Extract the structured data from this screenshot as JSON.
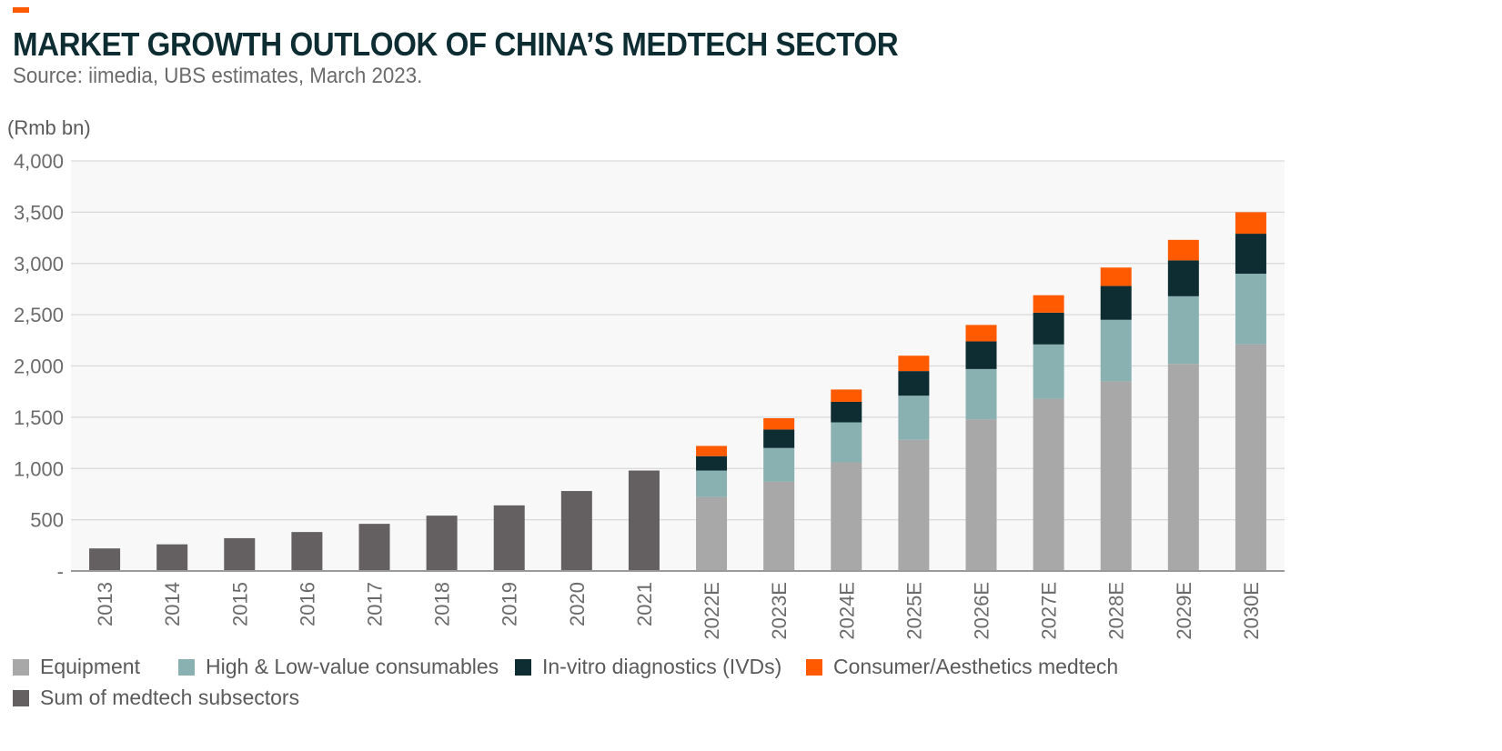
{
  "header": {
    "title": "MARKET GROWTH OUTLOOK OF CHINA’S MEDTECH SECTOR",
    "source": "Source: iimedia, UBS estimates, March 2023."
  },
  "colors": {
    "accent": "#ff5a00",
    "equipment": "#a9a8a8",
    "consumables": "#8ab1b1",
    "ivd": "#0d2d33",
    "aesthetics": "#ff5a00",
    "sum": "#646061",
    "plot_bg": "#f7f8f7",
    "grid": "#d9d9d9"
  },
  "chart_data": {
    "type": "bar",
    "stacked": true,
    "unit_label": "(Rmb bn)",
    "ylim": [
      0,
      4000
    ],
    "yticks": [
      0,
      500,
      1000,
      1500,
      2000,
      2500,
      3000,
      3500,
      4000
    ],
    "ytick_labels": [
      "-",
      "500",
      "1,000",
      "1,500",
      "2,000",
      "2,500",
      "3,000",
      "3,500",
      "4,000"
    ],
    "categories": [
      "2013",
      "2014",
      "2015",
      "2016",
      "2017",
      "2018",
      "2019",
      "2020",
      "2021",
      "2022E",
      "2023E",
      "2024E",
      "2025E",
      "2026E",
      "2027E",
      "2028E",
      "2029E",
      "2030E"
    ],
    "series": [
      {
        "name": "Equipment",
        "color_key": "equipment",
        "values": [
          0,
          0,
          0,
          0,
          0,
          0,
          0,
          0,
          0,
          720,
          870,
          1060,
          1280,
          1480,
          1680,
          1850,
          2020,
          2210
        ]
      },
      {
        "name": "High & Low-value consumables",
        "color_key": "consumables",
        "values": [
          0,
          0,
          0,
          0,
          0,
          0,
          0,
          0,
          0,
          260,
          330,
          390,
          430,
          490,
          530,
          600,
          660,
          690
        ]
      },
      {
        "name": "In-vitro diagnostics (IVDs)",
        "color_key": "ivd",
        "values": [
          0,
          0,
          0,
          0,
          0,
          0,
          0,
          0,
          0,
          140,
          180,
          200,
          240,
          270,
          310,
          330,
          350,
          390
        ]
      },
      {
        "name": "Consumer/Aesthetics medtech",
        "color_key": "aesthetics",
        "values": [
          0,
          0,
          0,
          0,
          0,
          0,
          0,
          0,
          0,
          100,
          110,
          120,
          150,
          160,
          170,
          180,
          200,
          210
        ]
      },
      {
        "name": "Sum of medtech subsectors",
        "color_key": "sum",
        "values": [
          220,
          260,
          320,
          380,
          460,
          540,
          640,
          780,
          980,
          0,
          0,
          0,
          0,
          0,
          0,
          0,
          0,
          0
        ]
      }
    ],
    "legend_position": "bottom",
    "grid": true
  }
}
